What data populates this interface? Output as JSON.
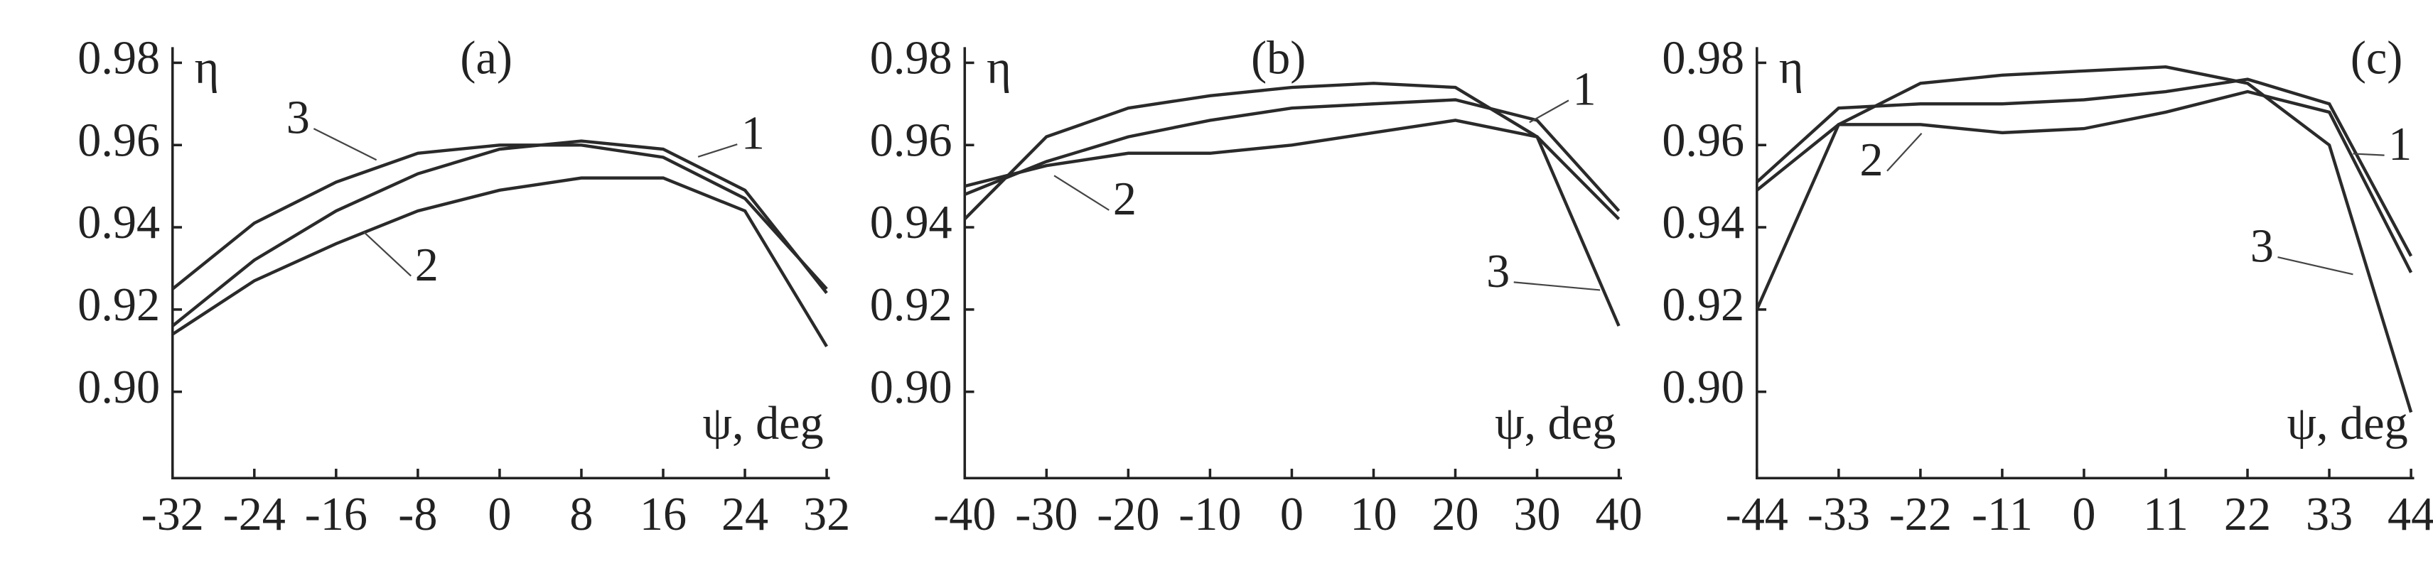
{
  "chart_data": [
    {
      "type": "line",
      "panel_label": "(a)",
      "y_label": "η",
      "x_label": "ψ, deg",
      "x": [
        -32,
        -24,
        -16,
        -8,
        0,
        8,
        16,
        24,
        32
      ],
      "xlim": [
        -32,
        32
      ],
      "xticks": [
        -32,
        -24,
        -16,
        -8,
        0,
        8,
        16,
        24,
        32
      ],
      "ylim": [
        0.879,
        0.98
      ],
      "yticks": [
        {
          "value": 0.9,
          "label": "0.90"
        },
        {
          "value": 0.92,
          "label": "0.92"
        },
        {
          "value": 0.94,
          "label": "0.94"
        },
        {
          "value": 0.96,
          "label": "0.96"
        },
        {
          "value": 0.98,
          "label": "0.98"
        }
      ],
      "series": [
        {
          "name": "1",
          "color": "#2a2a2a",
          "values": [
            0.916,
            0.932,
            0.944,
            0.953,
            0.959,
            0.961,
            0.959,
            0.949,
            0.924
          ]
        },
        {
          "name": "2",
          "color": "#2a2a2a",
          "values": [
            0.914,
            0.927,
            0.936,
            0.944,
            0.949,
            0.952,
            0.952,
            0.944,
            0.911
          ]
        },
        {
          "name": "3",
          "color": "#2a2a2a",
          "values": [
            0.925,
            0.941,
            0.951,
            0.958,
            0.96,
            0.96,
            0.957,
            0.947,
            0.925
          ]
        }
      ]
    },
    {
      "type": "line",
      "panel_label": "(b)",
      "y_label": "η",
      "x_label": "ψ, deg",
      "x": [
        -40,
        -30,
        -20,
        -10,
        0,
        10,
        20,
        30,
        40
      ],
      "xlim": [
        -40,
        40
      ],
      "xticks": [
        -40,
        -30,
        -20,
        -10,
        0,
        10,
        20,
        30,
        40
      ],
      "ylim": [
        0.879,
        0.98
      ],
      "yticks": [
        {
          "value": 0.9,
          "label": "0.90"
        },
        {
          "value": 0.92,
          "label": "0.92"
        },
        {
          "value": 0.94,
          "label": "0.94"
        },
        {
          "value": 0.96,
          "label": "0.96"
        },
        {
          "value": 0.98,
          "label": "0.98"
        }
      ],
      "series": [
        {
          "name": "1",
          "color": "#2a2a2a",
          "values": [
            0.948,
            0.956,
            0.962,
            0.966,
            0.969,
            0.97,
            0.971,
            0.966,
            0.944
          ]
        },
        {
          "name": "2",
          "color": "#2a2a2a",
          "values": [
            0.95,
            0.955,
            0.958,
            0.958,
            0.96,
            0.963,
            0.966,
            0.962,
            0.942
          ]
        },
        {
          "name": "3",
          "color": "#2a2a2a",
          "values": [
            0.942,
            0.962,
            0.969,
            0.972,
            0.974,
            0.975,
            0.974,
            0.962,
            0.916
          ]
        }
      ]
    },
    {
      "type": "line",
      "panel_label": "(c)",
      "y_label": "η",
      "x_label": "ψ, deg",
      "x": [
        -44,
        -33,
        -22,
        -11,
        0,
        11,
        22,
        33,
        44
      ],
      "xlim": [
        -44,
        44
      ],
      "xticks": [
        -44,
        -33,
        -22,
        -11,
        0,
        11,
        22,
        33,
        44
      ],
      "ylim": [
        0.879,
        0.98
      ],
      "yticks": [
        {
          "value": 0.9,
          "label": "0.90"
        },
        {
          "value": 0.92,
          "label": "0.92"
        },
        {
          "value": 0.94,
          "label": "0.94"
        },
        {
          "value": 0.96,
          "label": "0.96"
        },
        {
          "value": 0.98,
          "label": "0.98"
        }
      ],
      "series": [
        {
          "name": "1",
          "color": "#2a2a2a",
          "values": [
            0.951,
            0.969,
            0.97,
            0.97,
            0.971,
            0.973,
            0.976,
            0.97,
            0.933
          ]
        },
        {
          "name": "2",
          "color": "#2a2a2a",
          "values": [
            0.949,
            0.965,
            0.965,
            0.963,
            0.964,
            0.968,
            0.973,
            0.968,
            0.929
          ]
        },
        {
          "name": "3",
          "color": "#2a2a2a",
          "values": [
            0.92,
            0.965,
            0.975,
            0.977,
            0.978,
            0.979,
            0.975,
            0.96,
            0.895
          ]
        }
      ]
    }
  ]
}
